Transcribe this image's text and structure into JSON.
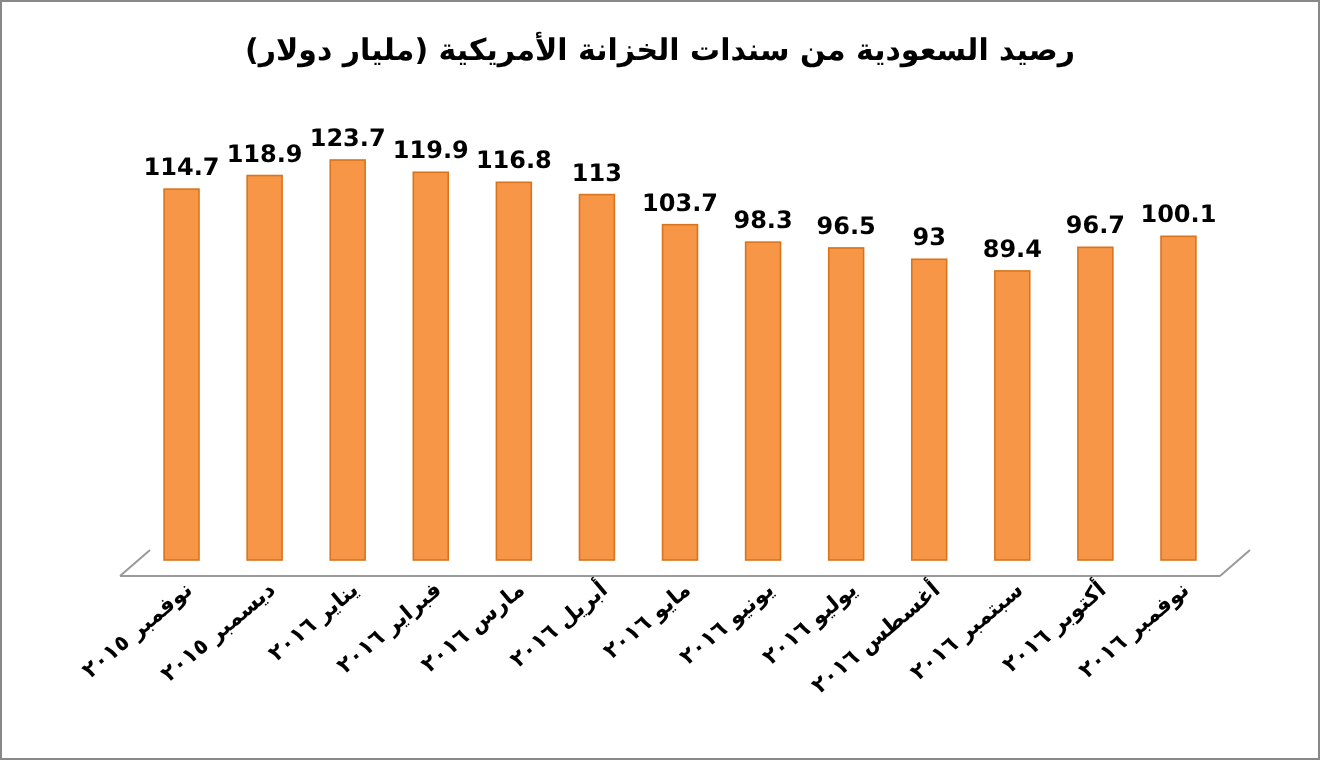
{
  "chart_data": {
    "type": "bar",
    "title": "رصيد السعودية من سندات الخزانة الأمريكية (مليار دولار)",
    "categories": [
      "نوفمبر ٢٠١٥",
      "ديسمبر ٢٠١٥",
      "يناير ٢٠١٦",
      "فبراير ٢٠١٦",
      "مارس ٢٠١٦",
      "أبريل ٢٠١٦",
      "مايو ٢٠١٦",
      "يونيو ٢٠١٦",
      "يوليو ٢٠١٦",
      "أغسطس ٢٠١٦",
      "سبتمبر ٢٠١٦",
      "أكتوبر ٢٠١٦",
      "نوفمبر ٢٠١٦"
    ],
    "values": [
      114.7,
      118.9,
      123.7,
      119.9,
      116.8,
      113,
      103.7,
      98.3,
      96.5,
      93,
      89.4,
      96.7,
      100.1
    ],
    "color": "#f79646",
    "data_labels": true
  }
}
